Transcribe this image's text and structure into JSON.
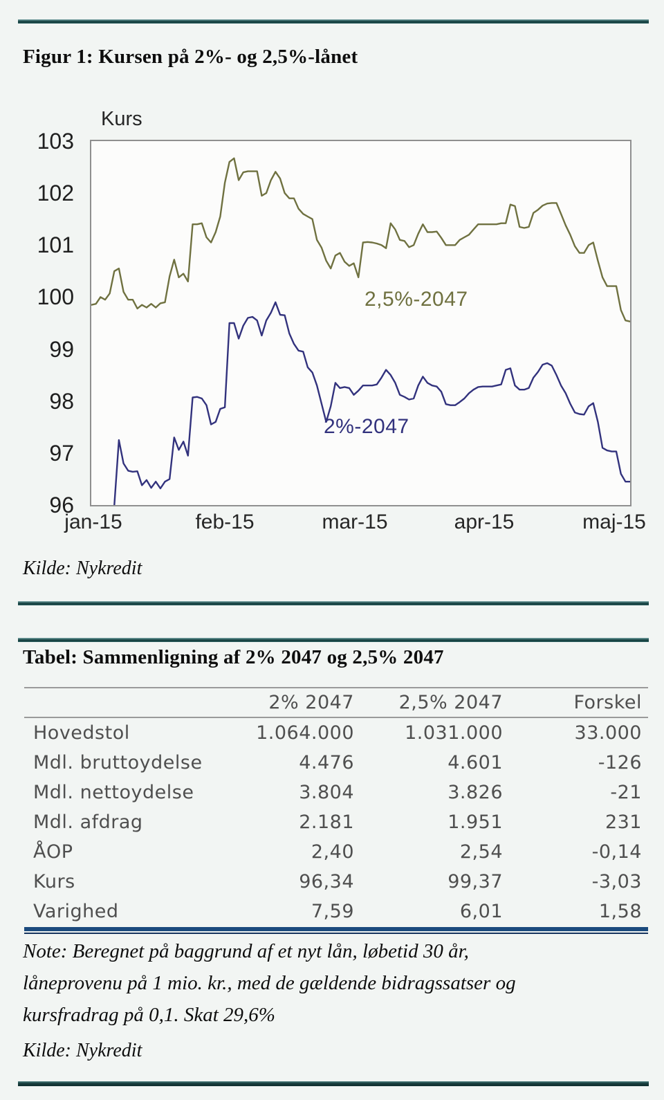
{
  "figure": {
    "title": "Figur 1: Kursen på 2%- og 2,5%-lånet",
    "source": "Kilde: Nykredit"
  },
  "chart_data": {
    "type": "line",
    "title": "Kurs",
    "ylabel": "Kurs",
    "xlabel": "",
    "ylim": [
      96,
      103
    ],
    "yticks": [
      103,
      102,
      101,
      100,
      99,
      98,
      97,
      96
    ],
    "xticks": [
      "jan-15",
      "feb-15",
      "mar-15",
      "apr-15",
      "maj-15"
    ],
    "grid": false,
    "legend_position": "inline-annotations",
    "annotations": [
      {
        "text": "2,5%-2047",
        "color": "#6f7140"
      },
      {
        "text": "2%-2047",
        "color": "#32327d"
      }
    ],
    "series": [
      {
        "name": "2,5%-2047",
        "color": "#6f7140",
        "values": [
          99.85,
          99.87,
          100.0,
          99.95,
          100.07,
          100.5,
          100.55,
          100.1,
          99.95,
          99.95,
          99.78,
          99.85,
          99.8,
          99.87,
          99.8,
          99.88,
          99.9,
          100.4,
          100.72,
          100.38,
          100.45,
          100.3,
          101.4,
          101.4,
          101.42,
          101.15,
          101.05,
          101.25,
          101.55,
          102.2,
          102.6,
          102.67,
          102.25,
          102.4,
          102.42,
          102.42,
          102.42,
          101.95,
          102.0,
          102.25,
          102.41,
          102.28,
          102.0,
          101.9,
          101.9,
          101.7,
          101.6,
          101.55,
          101.5,
          101.1,
          100.95,
          100.7,
          100.55,
          100.8,
          100.85,
          100.68,
          100.6,
          100.65,
          100.38,
          101.05,
          101.06,
          101.05,
          101.03,
          101.0,
          100.94,
          101.42,
          101.3,
          101.1,
          101.08,
          100.96,
          101.0,
          101.22,
          101.4,
          101.25,
          101.25,
          101.26,
          101.14,
          101.0,
          101.0,
          101.0,
          101.1,
          101.15,
          101.2,
          101.3,
          101.4,
          101.4,
          101.4,
          101.4,
          101.4,
          101.42,
          101.42,
          101.78,
          101.75,
          101.35,
          101.33,
          101.35,
          101.62,
          101.68,
          101.76,
          101.8,
          101.81,
          101.81,
          101.6,
          101.38,
          101.2,
          100.98,
          100.85,
          100.85,
          101.0,
          101.05,
          100.7,
          100.38,
          100.21,
          100.21,
          100.21,
          99.75,
          99.55,
          99.53
        ]
      },
      {
        "name": "2%-2047",
        "color": "#32327d",
        "values": [
          null,
          null,
          null,
          null,
          null,
          96.0,
          97.25,
          96.8,
          96.66,
          96.64,
          96.65,
          96.38,
          96.48,
          96.33,
          96.45,
          96.32,
          96.45,
          96.5,
          97.3,
          97.06,
          97.22,
          96.95,
          98.07,
          98.08,
          98.05,
          97.92,
          97.55,
          97.6,
          97.85,
          97.88,
          99.5,
          99.5,
          99.2,
          99.45,
          99.6,
          99.62,
          99.55,
          99.26,
          99.55,
          99.7,
          99.9,
          99.66,
          99.65,
          99.3,
          99.1,
          98.97,
          98.95,
          98.65,
          98.55,
          98.3,
          97.95,
          97.6,
          97.9,
          98.35,
          98.25,
          98.27,
          98.25,
          98.12,
          98.2,
          98.3,
          98.3,
          98.3,
          98.32,
          98.45,
          98.6,
          98.5,
          98.35,
          98.12,
          98.08,
          98.03,
          98.05,
          98.3,
          98.47,
          98.35,
          98.3,
          98.28,
          98.18,
          97.94,
          97.92,
          97.92,
          97.98,
          98.05,
          98.15,
          98.22,
          98.27,
          98.28,
          98.28,
          98.28,
          98.3,
          98.32,
          98.6,
          98.63,
          98.3,
          98.22,
          98.22,
          98.25,
          98.45,
          98.56,
          98.7,
          98.73,
          98.68,
          98.5,
          98.3,
          98.15,
          97.95,
          97.78,
          97.75,
          97.74,
          97.9,
          97.96,
          97.6,
          97.1,
          97.05,
          97.03,
          97.03,
          96.6,
          96.45,
          96.45
        ]
      }
    ]
  },
  "table": {
    "title": "Tabel: Sammenligning af 2% 2047 og 2,5% 2047",
    "columns": [
      "",
      "2% 2047",
      "2,5% 2047",
      "Forskel"
    ],
    "rows": [
      [
        "Hovedstol",
        "1.064.000",
        "1.031.000",
        "33.000"
      ],
      [
        "Mdl. bruttoydelse",
        "4.476",
        "4.601",
        "-126"
      ],
      [
        "Mdl. nettoydelse",
        "3.804",
        "3.826",
        "-21"
      ],
      [
        "Mdl. afdrag",
        "2.181",
        "1.951",
        "231"
      ],
      [
        "ÅOP",
        "2,40",
        "2,54",
        "-0,14"
      ],
      [
        "Kurs",
        "96,34",
        "99,37",
        "-3,03"
      ],
      [
        "Varighed",
        "7,59",
        "6,01",
        "1,58"
      ]
    ],
    "note_lines": [
      "Note: Beregnet på baggrund af et nyt lån, løbetid 30 år,",
      "låneprovenu på 1 mio. kr., med de gældende bidragssatser og",
      "kursfradrag på 0,1. Skat 29,6%"
    ],
    "source": "Kilde: Nykredit"
  },
  "colors": {
    "background": "#f2f5f3",
    "rule_teal": "#265454",
    "series_2_5pct": "#6f7140",
    "series_2pct": "#32327d",
    "table_text": "#4f4f4f",
    "table_navy_rule": "#1b4a7d"
  }
}
